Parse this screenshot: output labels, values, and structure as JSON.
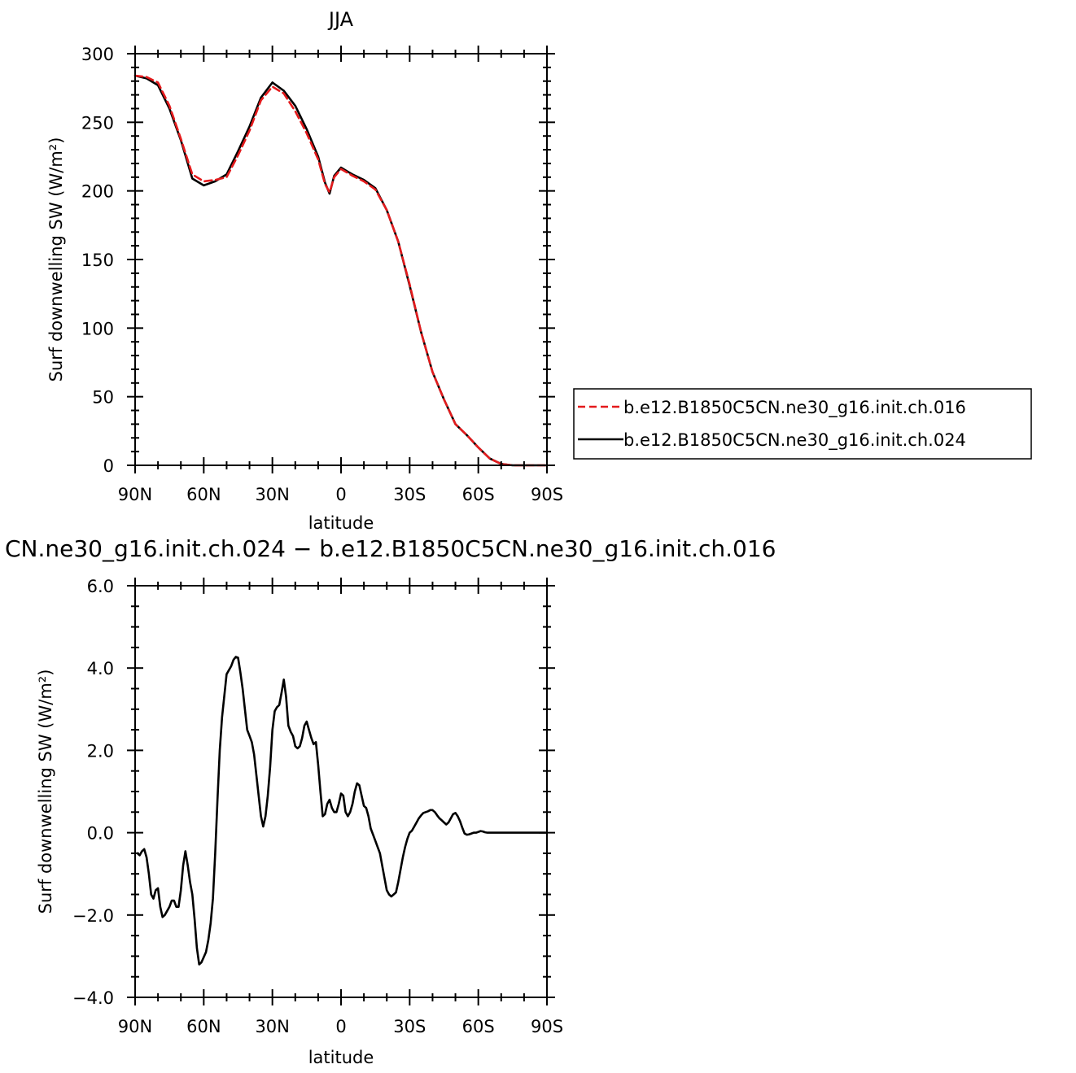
{
  "chart_data": [
    {
      "type": "line",
      "title": "JJA",
      "xlabel": "latitude",
      "ylabel": "Surf downwelling SW (W/m²)",
      "xlim": [
        90,
        -90
      ],
      "ylim": [
        0,
        300
      ],
      "x_ticks": [
        {
          "value": 90,
          "label": "90N"
        },
        {
          "value": 60,
          "label": "60N"
        },
        {
          "value": 30,
          "label": "30N"
        },
        {
          "value": 0,
          "label": "0"
        },
        {
          "value": -30,
          "label": "30S"
        },
        {
          "value": -60,
          "label": "60S"
        },
        {
          "value": -90,
          "label": "90S"
        }
      ],
      "y_ticks": [
        {
          "value": 0,
          "label": "0"
        },
        {
          "value": 50,
          "label": "50"
        },
        {
          "value": 100,
          "label": "100"
        },
        {
          "value": 150,
          "label": "150"
        },
        {
          "value": 200,
          "label": "200"
        },
        {
          "value": 250,
          "label": "250"
        },
        {
          "value": 300,
          "label": "300"
        }
      ],
      "legend_placement": "right",
      "series": [
        {
          "name": "b.e12.B1850C5CN.ne30_g16.init.ch.016",
          "color": "#e41a1c",
          "dash": "dashed",
          "x": [
            90,
            85,
            80,
            75,
            70,
            65,
            60,
            55,
            50,
            45,
            40,
            35,
            30,
            25,
            20,
            15,
            10,
            7,
            5,
            3,
            0,
            -3,
            -5,
            -10,
            -15,
            -20,
            -25,
            -30,
            -35,
            -40,
            -45,
            -50,
            -55,
            -60,
            -65,
            -70,
            -75,
            -80,
            -85,
            -90
          ],
          "y": [
            284,
            283,
            279,
            262,
            238,
            212,
            207,
            208,
            210,
            226,
            244,
            266,
            276,
            271,
            258,
            242,
            223,
            205,
            199,
            210,
            216,
            213,
            211,
            207,
            201,
            186,
            163,
            132,
            97,
            68,
            48,
            30,
            22,
            13,
            5,
            1,
            0,
            0,
            0,
            0
          ]
        },
        {
          "name": "b.e12.B1850C5CN.ne30_g16.init.ch.024",
          "color": "#000000",
          "dash": "solid",
          "x": [
            90,
            85,
            80,
            75,
            70,
            65,
            60,
            55,
            50,
            45,
            40,
            35,
            30,
            25,
            20,
            15,
            10,
            7,
            5,
            3,
            0,
            -3,
            -5,
            -10,
            -15,
            -20,
            -25,
            -30,
            -35,
            -40,
            -45,
            -50,
            -55,
            -60,
            -65,
            -70,
            -75,
            -80,
            -85,
            -90
          ],
          "y": [
            284,
            282,
            277,
            260,
            237,
            209,
            204,
            207,
            212,
            229,
            247,
            268,
            279,
            273,
            262,
            245,
            225,
            206,
            198,
            211,
            217,
            214,
            212,
            208,
            202,
            186,
            163,
            131,
            97,
            68,
            48,
            30,
            22,
            13,
            5,
            1,
            0,
            0,
            0,
            0
          ]
        }
      ]
    },
    {
      "type": "line",
      "title": "CN.ne30_g16.init.ch.024 − b.e12.B1850C5CN.ne30_g16.init.ch.016",
      "xlabel": "latitude",
      "ylabel": "Surf downwelling SW (W/m²)",
      "xlim": [
        90,
        -90
      ],
      "ylim": [
        -4,
        6
      ],
      "x_ticks": [
        {
          "value": 90,
          "label": "90N"
        },
        {
          "value": 60,
          "label": "60N"
        },
        {
          "value": 30,
          "label": "30N"
        },
        {
          "value": 0,
          "label": "0"
        },
        {
          "value": -30,
          "label": "30S"
        },
        {
          "value": -60,
          "label": "60S"
        },
        {
          "value": -90,
          "label": "90S"
        }
      ],
      "y_ticks": [
        {
          "value": -4,
          "label": "−4.0"
        },
        {
          "value": -2,
          "label": "−2.0"
        },
        {
          "value": 0,
          "label": "0.0"
        },
        {
          "value": 2,
          "label": "2.0"
        },
        {
          "value": 4,
          "label": "4.0"
        },
        {
          "value": 6,
          "label": "6.0"
        }
      ],
      "series": [
        {
          "color": "#000000",
          "dash": "solid",
          "x": [
            89,
            88,
            87,
            86,
            85,
            84,
            83,
            82,
            81,
            80,
            79,
            78,
            77,
            75,
            74,
            73,
            72,
            71,
            70,
            69,
            68,
            67,
            66,
            65,
            64,
            63,
            62,
            61,
            59,
            58,
            57,
            56,
            55,
            54,
            53,
            52,
            50,
            49,
            48,
            47,
            46,
            45,
            44,
            43,
            42,
            41,
            40,
            39,
            38,
            37,
            36,
            35,
            34,
            33,
            32,
            31,
            30,
            29,
            28,
            27,
            26,
            25,
            24,
            23,
            22,
            21,
            20,
            19,
            18,
            17,
            16,
            15,
            14,
            13,
            12,
            11,
            10,
            9,
            8,
            7,
            6,
            5,
            4,
            3,
            2,
            1,
            0,
            -1,
            -2,
            -3,
            -4,
            -5,
            -6,
            -7,
            -8,
            -9,
            -10,
            -11,
            -12,
            -13,
            -14,
            -15,
            -16,
            -17,
            -18,
            -19,
            -20,
            -21,
            -22,
            -23,
            -24,
            -25,
            -26,
            -27,
            -28,
            -29,
            -30,
            -31,
            -32,
            -33,
            -34,
            -35,
            -36,
            -37,
            -38,
            -39,
            -40,
            -41,
            -42,
            -43,
            -44,
            -45,
            -46,
            -47,
            -48,
            -49,
            -50,
            -51,
            -52,
            -53,
            -54,
            -55,
            -56,
            -57,
            -58,
            -59,
            -60,
            -61,
            -62,
            -63,
            -64,
            -65,
            -66,
            -67,
            -68,
            -70,
            -72,
            -75,
            -80,
            -85,
            -90
          ],
          "y": [
            -0.5,
            -0.55,
            -0.45,
            -0.4,
            -0.6,
            -1.0,
            -1.5,
            -1.6,
            -1.4,
            -1.35,
            -1.8,
            -2.05,
            -2.0,
            -1.8,
            -1.65,
            -1.65,
            -1.8,
            -1.8,
            -1.4,
            -0.8,
            -0.45,
            -0.8,
            -1.2,
            -1.5,
            -2.1,
            -2.8,
            -3.2,
            -3.15,
            -2.9,
            -2.6,
            -2.2,
            -1.6,
            -0.5,
            0.8,
            2.0,
            2.8,
            3.85,
            3.95,
            4.05,
            4.2,
            4.27,
            4.25,
            3.9,
            3.5,
            3.0,
            2.5,
            2.35,
            2.2,
            1.9,
            1.4,
            0.9,
            0.4,
            0.15,
            0.4,
            0.9,
            1.6,
            2.5,
            2.95,
            3.05,
            3.1,
            3.4,
            3.72,
            3.3,
            2.6,
            2.45,
            2.35,
            2.1,
            2.05,
            2.1,
            2.3,
            2.6,
            2.7,
            2.5,
            2.3,
            2.15,
            2.2,
            1.65,
            1.0,
            0.4,
            0.45,
            0.7,
            0.8,
            0.6,
            0.5,
            0.5,
            0.7,
            0.95,
            0.9,
            0.5,
            0.4,
            0.5,
            0.7,
            1.0,
            1.2,
            1.15,
            0.9,
            0.65,
            0.6,
            0.4,
            0.1,
            -0.05,
            -0.2,
            -0.35,
            -0.5,
            -0.8,
            -1.1,
            -1.4,
            -1.5,
            -1.55,
            -1.5,
            -1.45,
            -1.2,
            -0.9,
            -0.6,
            -0.35,
            -0.15,
            0.0,
            0.05,
            0.15,
            0.25,
            0.35,
            0.42,
            0.48,
            0.5,
            0.52,
            0.55,
            0.55,
            0.5,
            0.42,
            0.35,
            0.3,
            0.25,
            0.2,
            0.25,
            0.35,
            0.45,
            0.48,
            0.4,
            0.28,
            0.12,
            -0.02,
            -0.05,
            -0.04,
            -0.02,
            0.0,
            0.0,
            0.02,
            0.04,
            0.03,
            0.01,
            0.0,
            0.0,
            0.0,
            0.0,
            0.0,
            0.0,
            0.0,
            0.0,
            0.0,
            0.0,
            0.0
          ]
        }
      ]
    }
  ]
}
